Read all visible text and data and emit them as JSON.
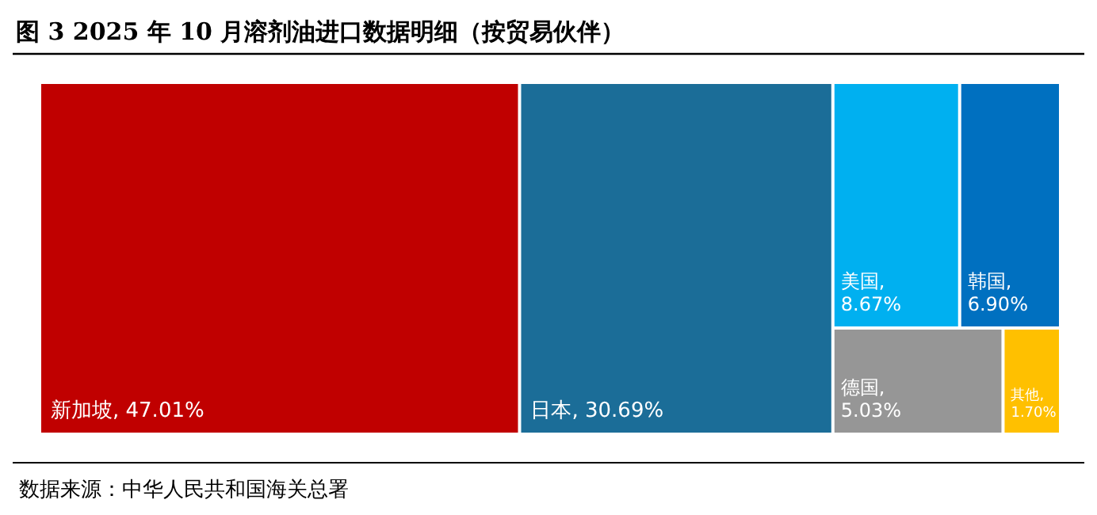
{
  "chart_data": {
    "type": "other",
    "title": "图 3 2025 年 10 月溶剂油进口数据明细（按贸易伙伴）",
    "categories": [
      "新加坡",
      "日本",
      "美国",
      "韩国",
      "德国",
      "其他"
    ],
    "values": [
      47.01,
      30.69,
      8.67,
      6.9,
      5.03,
      1.7
    ],
    "value_labels": [
      ", 47.01%",
      ", 30.69%",
      ", 8.67%",
      ", 6.90%",
      ", 5.03%",
      ", 1.70%"
    ],
    "colors": [
      "#c00000",
      "#1b6d98",
      "#00b0f0",
      "#0070c0",
      "#969696",
      "#ffc000"
    ],
    "annotations": [
      "数据来源：中华人民共和国海关总署"
    ]
  }
}
